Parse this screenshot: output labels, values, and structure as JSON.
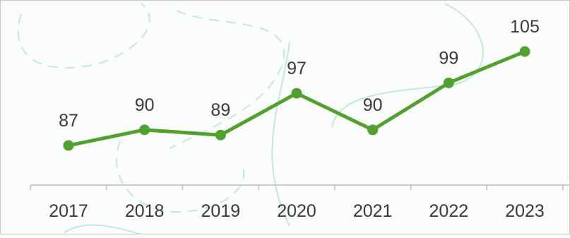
{
  "colors": {
    "line": "#52a12e",
    "axis": "#bdbdbd",
    "text": "#3a3a3a",
    "decoration": "#bfe8e3"
  },
  "chart_data": {
    "type": "line",
    "title": "",
    "xlabel": "",
    "ylabel": "",
    "categories": [
      "2017",
      "2018",
      "2019",
      "2020",
      "2021",
      "2022",
      "2023"
    ],
    "series": [
      {
        "values": [
          87,
          90,
          89,
          97,
          90,
          99,
          105
        ]
      }
    ],
    "data_labels": [
      "87",
      "90",
      "89",
      "97",
      "90",
      "99",
      "105"
    ],
    "grid": false,
    "legend": "none",
    "markers": "circle"
  }
}
